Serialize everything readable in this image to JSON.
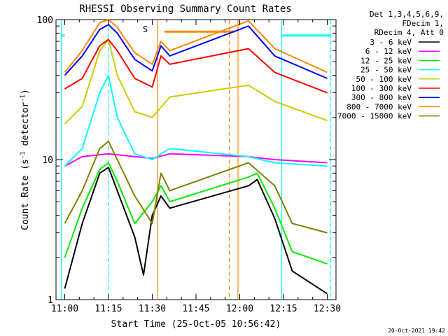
{
  "chart_data": {
    "type": "line",
    "title": "RHESSI Observing Summary Count Rates",
    "xlabel": "Start Time (25-Oct-05 10:56:42)",
    "ylabel": "Count Rate (s⁻¹ detector⁻¹)",
    "ylabel_main": "Count Rate (s",
    "ylabel_sup1": "-1",
    "ylabel_mid": " detector",
    "ylabel_sup2": "-1",
    "ylabel_end": ")",
    "yscale": "log",
    "ylim": [
      1,
      100
    ],
    "xlim_minutes": [
      10.95,
      12.55
    ],
    "x_ticks": [
      {
        "label": "11:00",
        "t": 11.0
      },
      {
        "label": "11:15",
        "t": 11.25
      },
      {
        "label": "11:30",
        "t": 11.5
      },
      {
        "label": "11:45",
        "t": 11.75
      },
      {
        "label": "12:00",
        "t": 12.0
      },
      {
        "label": "12:15",
        "t": 12.25
      },
      {
        "label": "12:30",
        "t": 12.5
      }
    ],
    "y_ticks": [
      {
        "label": "1",
        "v": 1
      },
      {
        "label": "10",
        "v": 10
      },
      {
        "label": "100",
        "v": 100
      }
    ],
    "legend_header": [
      "Det 1,3,4,5,6,9,",
      "FDecim 1,",
      "RDecim 4, Att 0"
    ],
    "legend_placement": "right",
    "series": [
      {
        "name": "3 - 6 keV",
        "color": "#000000",
        "values": [
          [
            11.0,
            1.2
          ],
          [
            11.1,
            3.5
          ],
          [
            11.2,
            8.0
          ],
          [
            11.25,
            8.8
          ],
          [
            11.3,
            6.0
          ],
          [
            11.4,
            2.8
          ],
          [
            11.45,
            1.5
          ],
          [
            11.5,
            4.0
          ],
          [
            11.55,
            5.5
          ],
          [
            11.6,
            4.5
          ],
          [
            12.05,
            6.5
          ],
          [
            12.1,
            7.2
          ],
          [
            12.2,
            3.8
          ],
          [
            12.3,
            1.6
          ],
          [
            12.5,
            1.1
          ]
        ]
      },
      {
        "name": "6 - 12 keV",
        "color": "#ff00ff",
        "values": [
          [
            11.0,
            9.0
          ],
          [
            11.1,
            10.5
          ],
          [
            11.25,
            11.0
          ],
          [
            11.4,
            10.5
          ],
          [
            11.5,
            10.2
          ],
          [
            11.6,
            11.0
          ],
          [
            12.05,
            10.5
          ],
          [
            12.2,
            10.0
          ],
          [
            12.5,
            9.5
          ]
        ]
      },
      {
        "name": "12 - 25 keV",
        "color": "#00ee00",
        "values": [
          [
            11.0,
            2.0
          ],
          [
            11.1,
            4.5
          ],
          [
            11.2,
            8.5
          ],
          [
            11.25,
            9.5
          ],
          [
            11.3,
            7.0
          ],
          [
            11.4,
            3.5
          ],
          [
            11.5,
            5.0
          ],
          [
            11.55,
            6.5
          ],
          [
            11.6,
            5.0
          ],
          [
            12.05,
            7.5
          ],
          [
            12.1,
            8.0
          ],
          [
            12.2,
            4.5
          ],
          [
            12.3,
            2.2
          ],
          [
            12.5,
            1.8
          ]
        ]
      },
      {
        "name": "25 - 50 keV",
        "color": "#00ffff",
        "values": [
          [
            11.0,
            9.0
          ],
          [
            11.1,
            12.0
          ],
          [
            11.2,
            30.0
          ],
          [
            11.25,
            40.0
          ],
          [
            11.3,
            20.0
          ],
          [
            11.4,
            11.0
          ],
          [
            11.5,
            10.0
          ],
          [
            11.6,
            12.0
          ],
          [
            12.05,
            10.5
          ],
          [
            12.2,
            9.5
          ],
          [
            12.5,
            9.0
          ]
        ]
      },
      {
        "name": "50 - 100 keV",
        "color": "#cccc00",
        "values": [
          [
            11.0,
            18.0
          ],
          [
            11.1,
            24.0
          ],
          [
            11.2,
            60.0
          ],
          [
            11.25,
            72.0
          ],
          [
            11.3,
            40.0
          ],
          [
            11.4,
            22.0
          ],
          [
            11.5,
            20.0
          ],
          [
            11.6,
            28.0
          ],
          [
            12.05,
            34.0
          ],
          [
            12.2,
            26.0
          ],
          [
            12.5,
            19.0
          ]
        ]
      },
      {
        "name": "100 - 300 keV",
        "color": "#ff0000",
        "values": [
          [
            11.0,
            32.0
          ],
          [
            11.1,
            38.0
          ],
          [
            11.2,
            65.0
          ],
          [
            11.25,
            72.0
          ],
          [
            11.3,
            60.0
          ],
          [
            11.4,
            38.0
          ],
          [
            11.5,
            33.0
          ],
          [
            11.55,
            55.0
          ],
          [
            11.6,
            48.0
          ],
          [
            12.05,
            62.0
          ],
          [
            12.2,
            42.0
          ],
          [
            12.5,
            30.0
          ]
        ]
      },
      {
        "name": "300 - 800 keV",
        "color": "#0000ff",
        "values": [
          [
            11.0,
            40.0
          ],
          [
            11.1,
            55.0
          ],
          [
            11.2,
            85.0
          ],
          [
            11.25,
            92.0
          ],
          [
            11.3,
            80.0
          ],
          [
            11.4,
            52.0
          ],
          [
            11.5,
            43.0
          ],
          [
            11.55,
            65.0
          ],
          [
            11.6,
            55.0
          ],
          [
            12.05,
            90.0
          ],
          [
            12.2,
            55.0
          ],
          [
            12.5,
            38.0
          ]
        ]
      },
      {
        "name": "800 - 7000 keV",
        "color": "#ff8800",
        "values": [
          [
            11.0,
            42.0
          ],
          [
            11.1,
            60.0
          ],
          [
            11.2,
            95.0
          ],
          [
            11.25,
            100.0
          ],
          [
            11.3,
            88.0
          ],
          [
            11.4,
            58.0
          ],
          [
            11.5,
            48.0
          ],
          [
            11.55,
            70.0
          ],
          [
            11.6,
            60.0
          ],
          [
            12.05,
            98.0
          ],
          [
            12.2,
            62.0
          ],
          [
            12.5,
            42.0
          ]
        ]
      },
      {
        "name": "7000 - 15000 keV",
        "color": "#808000",
        "values": [
          [
            11.0,
            3.5
          ],
          [
            11.1,
            6.0
          ],
          [
            11.2,
            12.0
          ],
          [
            11.25,
            13.5
          ],
          [
            11.3,
            10.0
          ],
          [
            11.4,
            5.5
          ],
          [
            11.5,
            3.5
          ],
          [
            11.55,
            8.0
          ],
          [
            11.6,
            6.0
          ],
          [
            12.05,
            9.5
          ],
          [
            12.2,
            6.5
          ],
          [
            12.3,
            3.5
          ],
          [
            12.5,
            3.0
          ]
        ]
      }
    ],
    "annotations": [
      {
        "text": "S",
        "t": 11.51,
        "v": 85,
        "color": "#ff8800"
      }
    ],
    "saa_bar": {
      "t": [
        11.57,
        11.97
      ],
      "v": 82,
      "color": "#ff8800"
    },
    "markers": [
      {
        "t": 11.53,
        "style": "solid",
        "color": "#ff8800"
      },
      {
        "t": 11.94,
        "style": "dashed",
        "color": "#ff8800"
      },
      {
        "t": 11.99,
        "style": "solid",
        "color": "#ff8800"
      },
      {
        "t": 11.25,
        "style": "dashed",
        "color": "#00ffff"
      },
      {
        "t": 12.24,
        "style": "solid",
        "color": "#00ffff"
      },
      {
        "t": 12.52,
        "style": "dashed",
        "color": "#00ffff"
      },
      {
        "t": 10.98,
        "style": "solid",
        "color": "#00ffff"
      }
    ],
    "night_bars": [
      {
        "t": [
          10.98,
          11.0
        ],
        "v": 77,
        "color": "#00ffff"
      },
      {
        "t": [
          12.24,
          12.52
        ],
        "v": 77,
        "color": "#00ffff"
      }
    ]
  },
  "timestamp": "20-Oct-2021 19:42"
}
